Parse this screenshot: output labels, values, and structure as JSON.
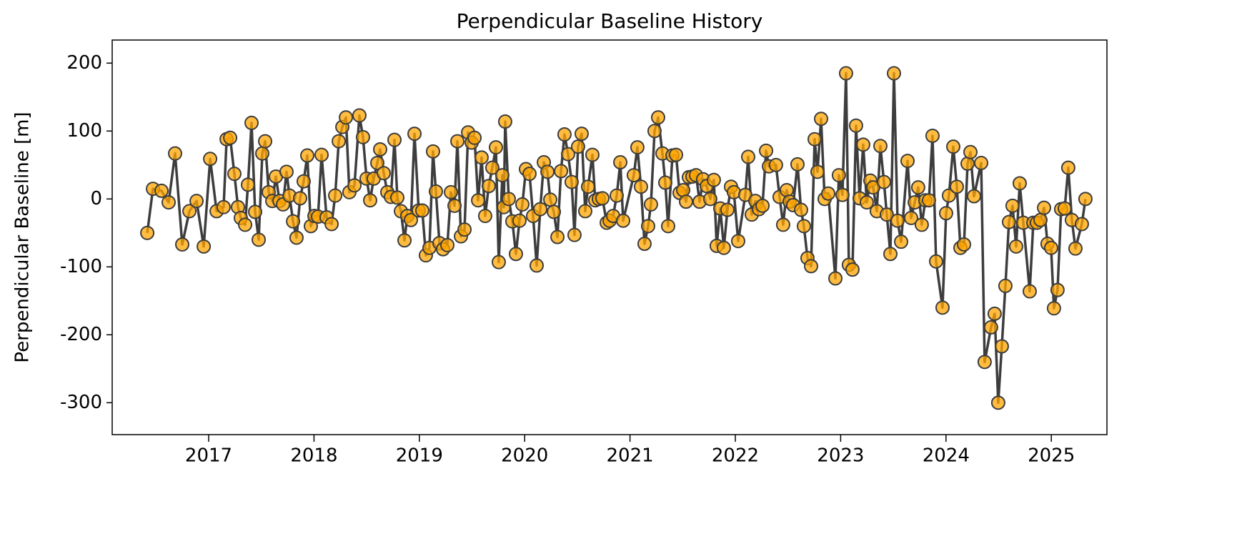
{
  "chart_data": {
    "type": "line",
    "title": "Perpendicular Baseline History",
    "ylabel": "Perpendicular Baseline [m]",
    "x": [
      2016.417,
      2016.471,
      2016.552,
      2016.62,
      2016.681,
      2016.749,
      2016.817,
      2016.885,
      2016.953,
      2017.014,
      2017.075,
      2017.142,
      2017.17,
      2017.204,
      2017.244,
      2017.278,
      2017.305,
      2017.346,
      2017.373,
      2017.407,
      2017.441,
      2017.475,
      2017.509,
      2017.536,
      2017.57,
      2017.604,
      2017.638,
      2017.672,
      2017.706,
      2017.739,
      2017.767,
      2017.801,
      2017.834,
      2017.868,
      2017.902,
      2017.936,
      2017.97,
      2018.004,
      2018.038,
      2018.072,
      2018.119,
      2018.167,
      2018.201,
      2018.235,
      2018.269,
      2018.303,
      2018.336,
      2018.384,
      2018.431,
      2018.465,
      2018.499,
      2018.533,
      2018.567,
      2018.601,
      2018.628,
      2018.662,
      2018.696,
      2018.73,
      2018.764,
      2018.791,
      2018.825,
      2018.859,
      2018.886,
      2018.92,
      2018.954,
      2018.994,
      2019.028,
      2019.062,
      2019.096,
      2019.13,
      2019.157,
      2019.191,
      2019.225,
      2019.266,
      2019.3,
      2019.334,
      2019.361,
      2019.395,
      2019.429,
      2019.463,
      2019.497,
      2019.524,
      2019.558,
      2019.591,
      2019.625,
      2019.659,
      2019.693,
      2019.727,
      2019.754,
      2019.788,
      2019.802,
      2019.815,
      2019.849,
      2019.883,
      2019.917,
      2019.951,
      2019.978,
      2020.012,
      2020.046,
      2020.08,
      2020.114,
      2020.148,
      2020.182,
      2020.216,
      2020.243,
      2020.277,
      2020.311,
      2020.345,
      2020.378,
      2020.412,
      2020.446,
      2020.473,
      2020.507,
      2020.541,
      2020.575,
      2020.602,
      2020.643,
      2020.67,
      2020.704,
      2020.738,
      2020.779,
      2020.806,
      2020.84,
      2020.874,
      2020.908,
      2020.935,
      2021.036,
      2021.07,
      2021.104,
      2021.138,
      2021.172,
      2021.199,
      2021.233,
      2021.267,
      2021.308,
      2021.335,
      2021.362,
      2021.403,
      2021.437,
      2021.471,
      2021.505,
      2021.532,
      2021.559,
      2021.593,
      2021.627,
      2021.661,
      2021.694,
      2021.728,
      2021.762,
      2021.796,
      2021.823,
      2021.857,
      2021.891,
      2021.925,
      2021.959,
      2021.986,
      2022.027,
      2022.095,
      2022.122,
      2022.156,
      2022.19,
      2022.224,
      2022.258,
      2022.292,
      2022.319,
      2022.386,
      2022.42,
      2022.454,
      2022.488,
      2022.515,
      2022.549,
      2022.59,
      2022.624,
      2022.651,
      2022.685,
      2022.719,
      2022.753,
      2022.78,
      2022.814,
      2022.848,
      2022.882,
      2022.95,
      2022.983,
      2023.017,
      2023.051,
      2023.078,
      2023.112,
      2023.146,
      2023.18,
      2023.214,
      2023.248,
      2023.282,
      2023.309,
      2023.343,
      2023.377,
      2023.411,
      2023.438,
      2023.472,
      2023.506,
      2023.54,
      2023.574,
      2023.635,
      2023.669,
      2023.703,
      2023.736,
      2023.77,
      2023.804,
      2023.838,
      2023.872,
      2023.906,
      2023.967,
      2024.001,
      2024.028,
      2024.069,
      2024.103,
      2024.137,
      2024.171,
      2024.205,
      2024.232,
      2024.266,
      2024.334,
      2024.367,
      2024.428,
      2024.462,
      2024.496,
      2024.53,
      2024.564,
      2024.598,
      2024.632,
      2024.666,
      2024.7,
      2024.734,
      2024.795,
      2024.829,
      2024.863,
      2024.897,
      2024.931,
      2024.964,
      2024.998,
      2025.025,
      2025.059,
      2025.093,
      2025.127,
      2025.161,
      2025.195,
      2025.229,
      2025.29,
      2025.324
    ],
    "values": [
      -50,
      15,
      12,
      -5,
      67,
      -67,
      -18,
      -3,
      -70,
      59,
      -18,
      -12,
      88,
      90,
      37,
      -12,
      -28,
      -38,
      21,
      112,
      -19,
      -60,
      67,
      85,
      10,
      -3,
      33,
      -3,
      -8,
      40,
      5,
      -33,
      -57,
      1,
      26,
      64,
      -40,
      -25,
      -26,
      65,
      -27,
      -37,
      5,
      85,
      106,
      120,
      10,
      20,
      123,
      91,
      30,
      -2,
      30,
      53,
      73,
      38,
      10,
      3,
      87,
      2,
      -18,
      -61,
      -25,
      -31,
      96,
      -17,
      -17,
      -83,
      -72,
      70,
      11,
      -65,
      -74,
      -68,
      10,
      -10,
      85,
      -55,
      -45,
      98,
      83,
      90,
      -2,
      61,
      -25,
      19,
      46,
      76,
      -93,
      35,
      -12,
      114,
      0,
      -33,
      -81,
      -32,
      -8,
      44,
      37,
      -25,
      -98,
      -15,
      54,
      40,
      -1,
      -19,
      -56,
      41,
      95,
      66,
      25,
      -53,
      77,
      96,
      -18,
      18,
      65,
      -2,
      0,
      1,
      -35,
      -32,
      -25,
      5,
      54,
      -32,
      35,
      76,
      18,
      -66,
      -40,
      -8,
      100,
      120,
      67,
      24,
      -40,
      64,
      65,
      9,
      13,
      -4,
      32,
      33,
      35,
      -4,
      29,
      19,
      0,
      28,
      -69,
      -14,
      -72,
      -16,
      18,
      10,
      -62,
      6,
      62,
      -23,
      -3,
      -15,
      -10,
      71,
      48,
      50,
      3,
      -38,
      13,
      -4,
      -9,
      51,
      -16,
      -40,
      -87,
      -99,
      88,
      40,
      118,
      0,
      8,
      -117,
      35,
      6,
      185,
      -97,
      -104,
      108,
      1,
      80,
      -5,
      27,
      17,
      -18,
      78,
      25,
      -23,
      -81,
      185,
      -32,
      -63,
      56,
      -28,
      -5,
      17,
      -38,
      -2,
      -2,
      93,
      -92,
      -160,
      -21,
      5,
      77,
      18,
      -72,
      -67,
      52,
      69,
      4,
      53,
      -240,
      -189,
      -169,
      -300,
      -217,
      -128,
      -34,
      -10,
      -70,
      23,
      -35,
      -136,
      -35,
      -35,
      -31,
      -13,
      -66,
      -72,
      -161,
      -134,
      -15,
      -14,
      46,
      -31,
      -73,
      -37,
      0
    ],
    "line_color": "#3d3d3d",
    "marker_color": "#ffa500",
    "xlim": [
      2016.084,
      2025.528
    ],
    "xticks": [
      2017,
      2018,
      2019,
      2020,
      2021,
      2022,
      2023,
      2024,
      2025
    ],
    "ylim": [
      -347,
      234
    ],
    "yticks": [
      -300,
      -200,
      -100,
      0,
      100,
      200
    ]
  }
}
